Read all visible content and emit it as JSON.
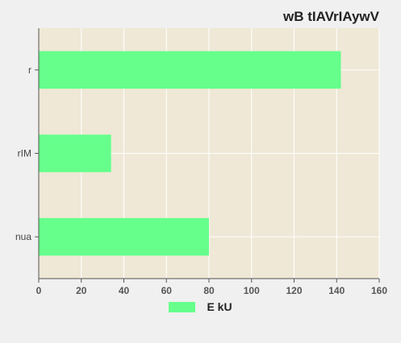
{
  "chart_data": {
    "type": "bar",
    "orientation": "horizontal",
    "title": "wB tIAVrIAywV",
    "categories": [
      "nua",
      "rIM",
      "r"
    ],
    "series": [
      {
        "name": "E kU",
        "values": [
          80,
          34,
          142
        ],
        "color": "#66ff8c"
      }
    ],
    "xlim": [
      0,
      160
    ],
    "xticks": [
      0,
      20,
      40,
      60,
      80,
      100,
      120,
      140,
      160
    ],
    "xlabel": "",
    "ylabel": "",
    "grid": true,
    "legend_position": "bottom-center",
    "plot_background": "#efe8d6",
    "grid_color": "#ffffff"
  }
}
